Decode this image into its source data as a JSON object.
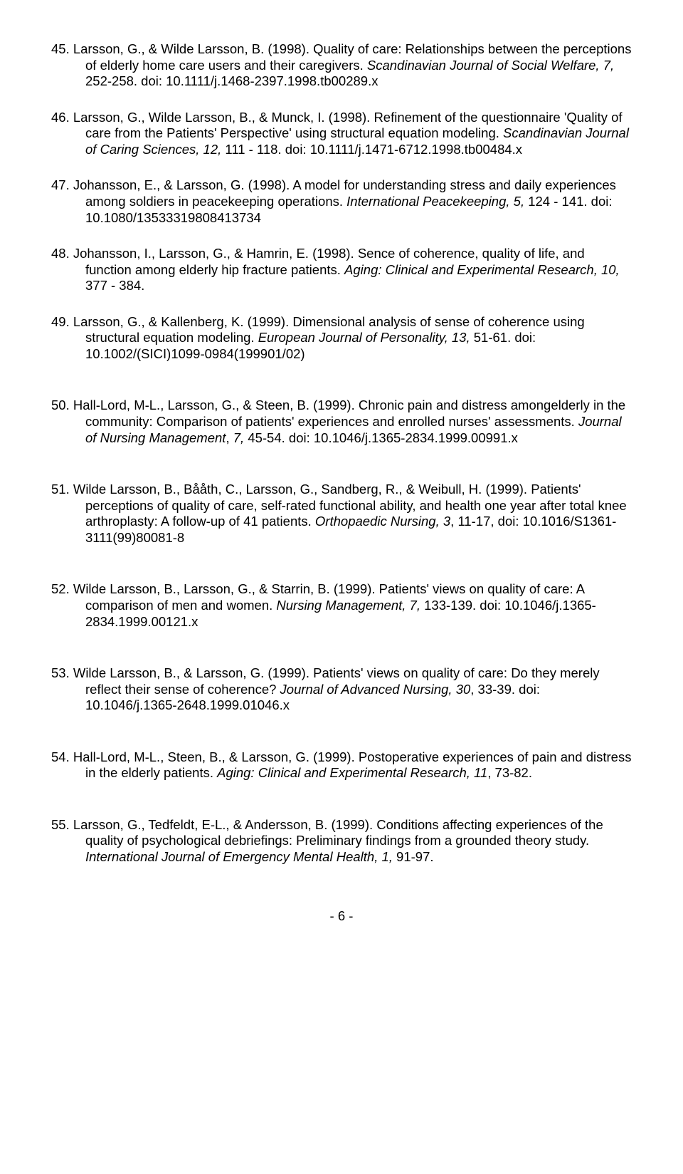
{
  "refs": [
    {
      "num": "45.",
      "authors": "Larsson, G., & Wilde Larsson, B. (1998). Quality of care: Relationships between the perceptions of elderly home care users and their caregivers. ",
      "journal": "Scandinavian Journal of Social Welfare, 7,",
      "rest": " 252-258. doi: 10.1111/j.1468-2397.1998.tb00289.x",
      "gap": "normal"
    },
    {
      "num": "46.",
      "authors": "Larsson, G., Wilde Larsson, B., & Munck, I. (1998). Refinement of the questionnaire 'Quality of care from the Patients' Perspective' using structural equation modeling. ",
      "journal": "Scandinavian Journal of Caring Sciences, 12,",
      "rest": " 111 - 118. doi: 10.1111/j.1471-6712.1998.tb00484.x",
      "gap": "normal"
    },
    {
      "num": "47.",
      "authors": "Johansson, E., & Larsson, G. (1998). A model for understanding stress and daily experiences among soldiers in peacekeeping operations. ",
      "journal": "International Peacekeeping, 5,",
      "rest": " 124 - 141. doi: 10.1080/13533319808413734",
      "gap": "normal"
    },
    {
      "num": "48.",
      "authors": "Johansson, I., Larsson, G., & Hamrin, E. (1998). Sence of coherence, quality of life, and function among elderly hip fracture patients. ",
      "journal": "Aging: Clinical and Experimental Research, 10,",
      "rest": " 377 - 384.",
      "gap": "normal"
    },
    {
      "num": "49. ",
      "authors": "Larsson, G., & Kallenberg, K. (1999). Dimensional analysis of sense of coherence using structural equation modeling. ",
      "journal": "European Journal of Personality, 13,",
      "rest": " 51-61. doi: 10.1002/(SICI)1099-0984(199901/02)",
      "gap": "extra"
    },
    {
      "num": "50.",
      "authors": "Hall-Lord, M-L., Larsson, G., & Steen, B. (1999). Chronic pain and distress amongelderly in the community: Comparison of patients' experiences and enrolled nurses' assessments.  ",
      "journal": "Journal of Nursing Management",
      "rest": ", ",
      "journal2": "7,",
      "rest2": " 45-54. doi: 10.1046/j.1365-2834.1999.00991.x",
      "gap": "extra"
    },
    {
      "num": "51.",
      "authors": "Wilde Larsson, B., Bååth, C., Larsson, G., Sandberg, R., & Weibull, H. (1999). Patients' perceptions of quality of care, self-rated functional ability, and health one year after total knee arthroplasty: A follow-up of 41 patients. ",
      "journal": "Orthopaedic Nursing, 3",
      "rest": ", 11-17, doi: 10.1016/S1361-3111(99)80081-8",
      "gap": "extra"
    },
    {
      "num": "52.",
      "authors": "Wilde Larsson, B., Larsson, G., & Starrin, B. (1999). Patients' views on quality of care: A comparison of men and women.  ",
      "journal": "Nursing Management, 7,",
      "rest": " 133-139. doi: 10.1046/j.1365-2834.1999.00121.x",
      "gap": "extra"
    },
    {
      "num": "53.",
      "authors": "Wilde Larsson, B., & Larsson, G. (1999). Patients' views on quality of care: Do they merely reflect their sense of coherence? ",
      "journal": "Journal of Advanced Nursing, 30",
      "rest": ", 33-39. doi: 10.1046/j.1365-2648.1999.01046.x",
      "gap": "extra"
    },
    {
      "num": "54.",
      "authors": "Hall-Lord, M-L., Steen, B., & Larsson, G. (1999). Postoperative experiences of pain and distress in the elderly patients. ",
      "journal": "Aging: Clinical and Experimental Research, 11",
      "rest": ", 73-82.",
      "gap": "extra"
    },
    {
      "num": "55.",
      "authors": "Larsson, G., Tedfeldt, E-L., & Andersson, B. (1999). Conditions affecting experiences of the quality of psychological debriefings: Preliminary findings from a grounded theory study. ",
      "journal": "International Journal of Emergency Mental Health, 1,",
      "rest": " 91-97.",
      "gap": "normal"
    }
  ],
  "pagenum": "- 6 -"
}
